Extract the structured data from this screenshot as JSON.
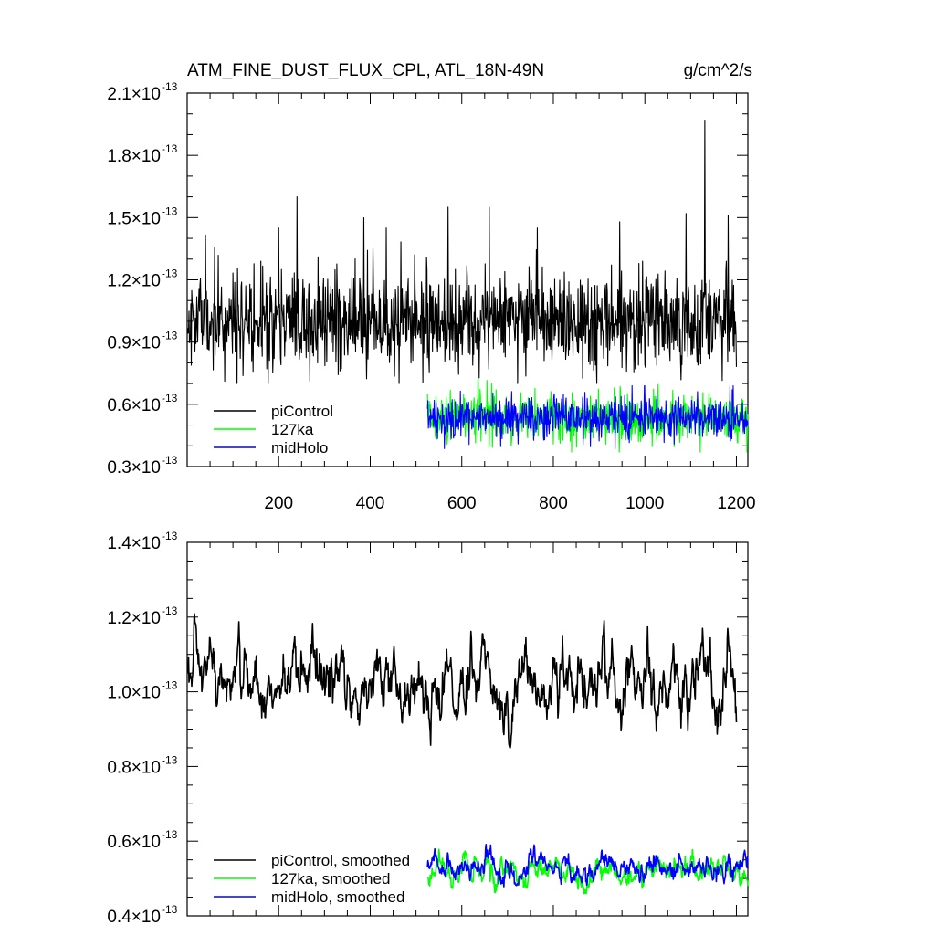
{
  "chart_data": [
    {
      "type": "line",
      "title": "ATM_FINE_DUST_FLUX_CPL, ATL_18N-49N",
      "units": "g/cm^2/s",
      "xlabel": "",
      "ylabel": "",
      "xlim": [
        0,
        1225
      ],
      "ylim": [
        0.3,
        2.1
      ],
      "y_exponent": "-13",
      "xticks": [
        200,
        400,
        600,
        800,
        1000,
        1200
      ],
      "yticks": [
        0.3,
        0.6,
        0.9,
        1.2,
        1.5,
        1.8,
        2.1
      ],
      "ytick_labels": [
        "0.3",
        "0.6",
        "0.9",
        "1.2",
        "1.5",
        "1.8",
        "2.1"
      ],
      "legend_position": "bottom-left",
      "series": [
        {
          "name": "piControl",
          "color": "#000000",
          "x_range": [
            1,
            1200
          ],
          "mean": 1.0,
          "noise_sd": 0.13,
          "min": 0.7,
          "max": 1.97,
          "peaks": [
            [
              240,
              1.6
            ],
            [
              200,
              1.45
            ],
            [
              435,
              1.45
            ],
            [
              570,
              1.55
            ],
            [
              660,
              1.55
            ],
            [
              765,
              1.45
            ],
            [
              945,
              1.48
            ],
            [
              1090,
              1.52
            ],
            [
              1131,
              1.97
            ],
            [
              1182,
              1.51
            ]
          ]
        },
        {
          "name": "127ka",
          "color": "#00ff00",
          "x_range": [
            525,
            1225
          ],
          "mean": 0.53,
          "noise_sd": 0.065,
          "min": 0.37,
          "max": 0.72
        },
        {
          "name": "midHolo",
          "color": "#0000ff",
          "x_range": [
            525,
            1225
          ],
          "mean": 0.53,
          "noise_sd": 0.055,
          "min": 0.38,
          "max": 0.69
        }
      ]
    },
    {
      "type": "line",
      "title": "",
      "xlabel": "",
      "ylabel": "",
      "xlim": [
        0,
        1225
      ],
      "ylim": [
        0.4,
        1.4
      ],
      "y_exponent": "-13",
      "xticks": [
        200,
        400,
        600,
        800,
        1000,
        1200
      ],
      "yticks": [
        0.4,
        0.6,
        0.8,
        1.0,
        1.2,
        1.4
      ],
      "ytick_labels": [
        "0.4",
        "0.6",
        "0.8",
        "1.0",
        "1.2",
        "1.4"
      ],
      "legend_position": "bottom-left",
      "series": [
        {
          "name": "piControl, smoothed",
          "color": "#000000",
          "x_range": [
            1,
            1200
          ],
          "mean": 1.02,
          "noise_sd": 0.055,
          "min": 0.85,
          "max": 1.21
        },
        {
          "name": "127ka, smoothed",
          "color": "#00ff00",
          "x_range": [
            525,
            1225
          ],
          "mean": 0.52,
          "noise_sd": 0.022,
          "min": 0.46,
          "max": 0.59
        },
        {
          "name": "midHolo, smoothed",
          "color": "#0000ff",
          "x_range": [
            525,
            1225
          ],
          "mean": 0.53,
          "noise_sd": 0.022,
          "min": 0.47,
          "max": 0.61
        }
      ]
    }
  ]
}
